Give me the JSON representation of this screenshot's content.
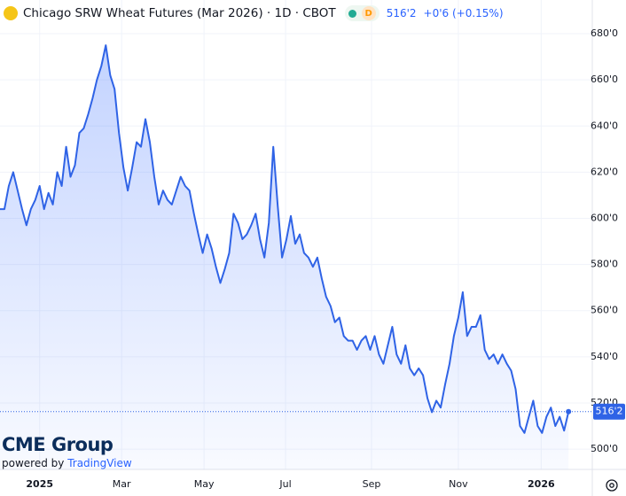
{
  "chart_data": {
    "type": "area",
    "title": "Chicago SRW Wheat Futures (Mar 2026) · 1D · CBOT",
    "interval_badge": "D",
    "last_price": "516'2",
    "change": "+0'6 (+0.15%)",
    "brand": "CME Group",
    "powered_by": "powered by",
    "powered_name": "TradingView",
    "color": "#2f63e6",
    "values": [
      604,
      604,
      614,
      620,
      612,
      604,
      597,
      604,
      608,
      614,
      604,
      611,
      606,
      620,
      614,
      631,
      618,
      623,
      637,
      639,
      645,
      652,
      660,
      666,
      675,
      662,
      656,
      637,
      622,
      612,
      622,
      633,
      631,
      643,
      633,
      618,
      606,
      612,
      608,
      606,
      612,
      618,
      614,
      612,
      602,
      593,
      585,
      593,
      587,
      579,
      572,
      578,
      585,
      602,
      598,
      591,
      593,
      597,
      602,
      591,
      583,
      598,
      631,
      606,
      583,
      591,
      601,
      589,
      593,
      585,
      583,
      579,
      583,
      574,
      566,
      562,
      555,
      557,
      549,
      547,
      547,
      543,
      547,
      549,
      543,
      549,
      541,
      537,
      545,
      553,
      541,
      537,
      545,
      535,
      532,
      535,
      532,
      522,
      516,
      521,
      518,
      528,
      537,
      549,
      557,
      568,
      549,
      553,
      553,
      558,
      543,
      539,
      541,
      537,
      541,
      537,
      534,
      526,
      510,
      507,
      514,
      521,
      510,
      507,
      514,
      518,
      510,
      514,
      508,
      516.25
    ],
    "xlim": [
      0,
      134.4
    ],
    "xticks": [
      {
        "value": 9,
        "label": "2025"
      },
      {
        "value": 27.6,
        "label": "Mar"
      },
      {
        "value": 46.3,
        "label": "May"
      },
      {
        "value": 64.8,
        "label": "Jul"
      },
      {
        "value": 84.3,
        "label": "Sep"
      },
      {
        "value": 104,
        "label": "Nov"
      },
      {
        "value": 122.8,
        "label": "2026"
      }
    ],
    "ylim": [
      491.2,
      694.6
    ],
    "yticks": [
      {
        "value": 500,
        "label": "500'0"
      },
      {
        "value": 520,
        "label": "520'0"
      },
      {
        "value": 540,
        "label": "540'0"
      },
      {
        "value": 560,
        "label": "560'0"
      },
      {
        "value": 580,
        "label": "580'0"
      },
      {
        "value": 600,
        "label": "600'0"
      },
      {
        "value": 620,
        "label": "620'0"
      },
      {
        "value": 640,
        "label": "640'0"
      },
      {
        "value": 660,
        "label": "660'0"
      },
      {
        "value": 680,
        "label": "680'0"
      }
    ],
    "price_tag": {
      "value": 516.25,
      "label": "516'2"
    },
    "grid": true
  }
}
